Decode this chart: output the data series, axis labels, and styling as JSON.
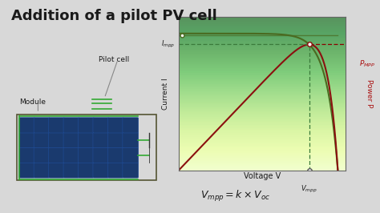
{
  "title": "Addition of a pilot PV cell",
  "title_fontsize": 13,
  "title_color": "#1a1a1a",
  "bg_color": "#d8d8d8",
  "chart_bg_color": "#aaee44",
  "chart_bg_color2": "#ddffaa",
  "ylabel_left": "Current I",
  "ylabel_right": "Power P",
  "xlabel": "Voltage V",
  "iv_color": "#4a6a20",
  "pv_color": "#8b1010",
  "grid_color": "#ffffff",
  "dashed_iv_color": "#3a7a3a",
  "dashed_pv_color": "#8b0000",
  "annotation_color": "#1a1a1a",
  "pilot_cell_color": "#1a3a6e",
  "module_color": "#1a3a6e",
  "module_border_color": "#33aa33",
  "left_bar_color": "#3a7abf",
  "pilot_line_color": "#4a6a20",
  "connector_color": "#888888"
}
